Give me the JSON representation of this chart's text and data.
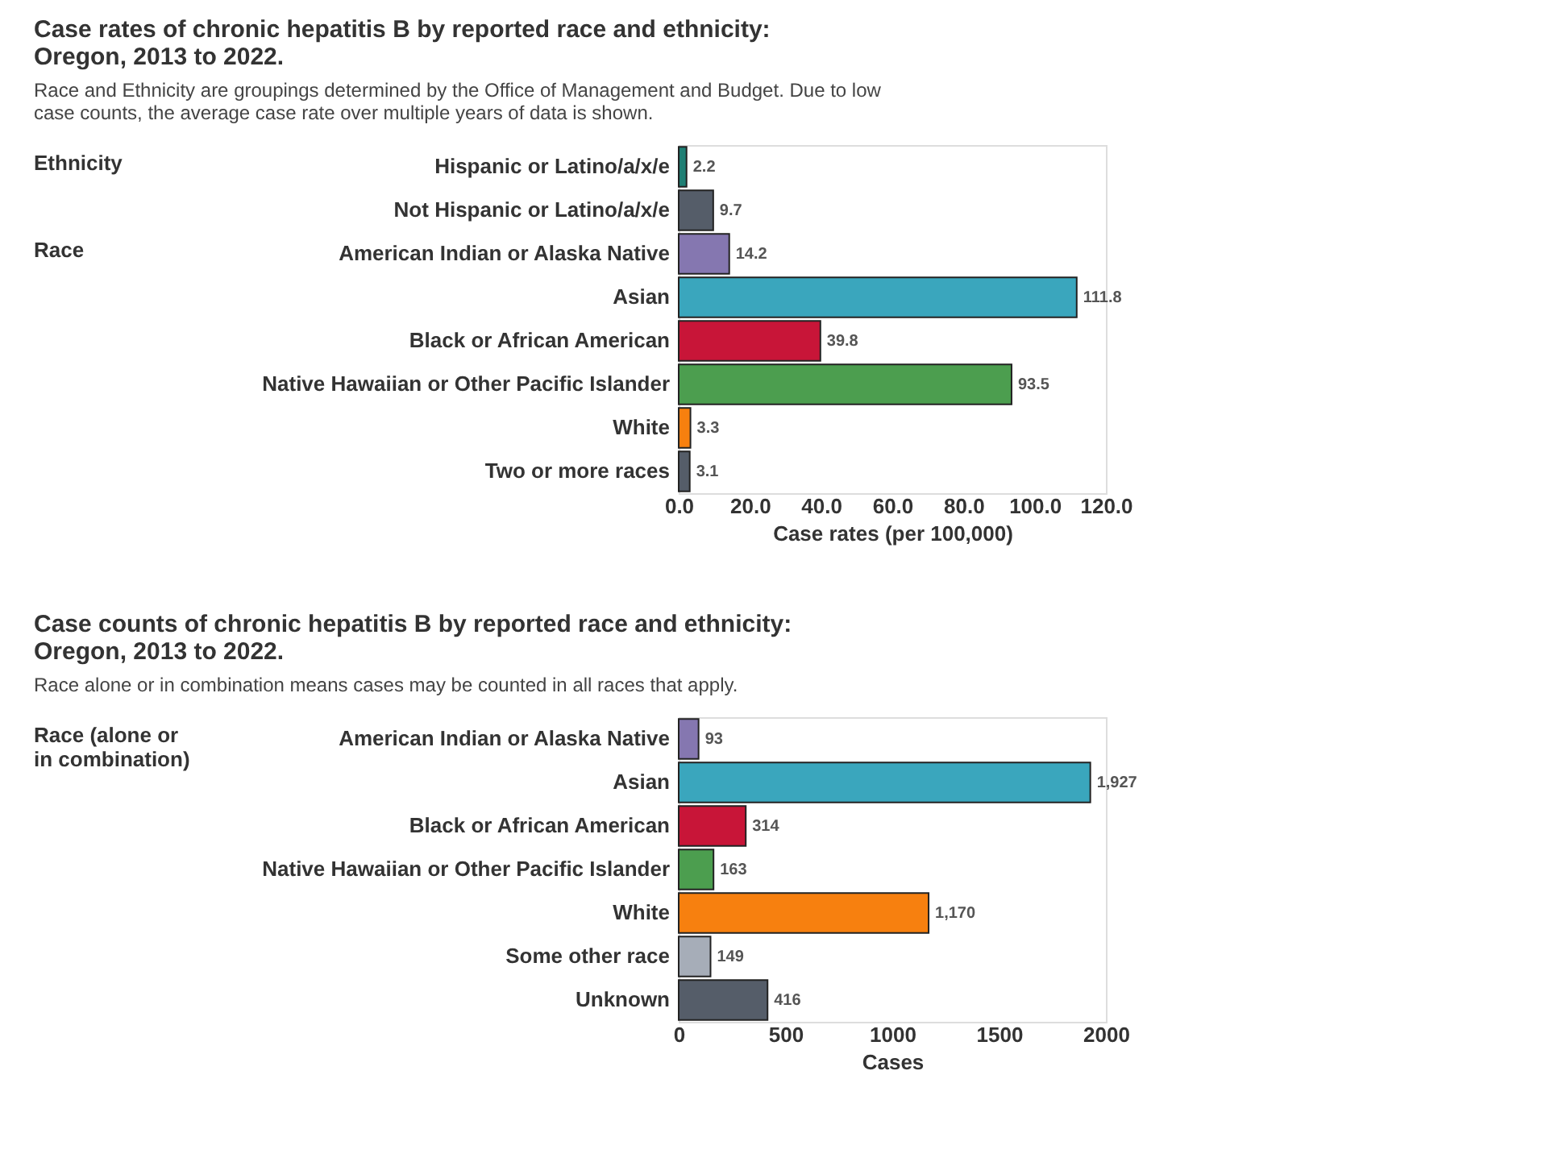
{
  "chart_data": [
    {
      "type": "bar",
      "orientation": "horizontal",
      "title": "Case rates of chronic hepatitis B by reported race and ethnicity: Oregon, 2013 to 2022.",
      "subtitle": "Race and Ethnicity are groupings determined by the Office of Management and Budget. Due to low case counts, the average case rate over multiple years of data is shown.",
      "xlabel": "Case rates (per 100,000)",
      "categories": [
        "Hispanic or Latino/a/x/e",
        "Not Hispanic or Latino/a/x/e",
        "American Indian or Alaska Native",
        "Asian",
        "Black or African American",
        "Native Hawaiian or Other Pacific Islander",
        "White",
        "Two or more races"
      ],
      "values": [
        2.2,
        9.7,
        14.2,
        111.8,
        39.8,
        93.5,
        3.3,
        3.1
      ],
      "colors": [
        "#1f7f74",
        "#555d69",
        "#8577b0",
        "#3aa6bd",
        "#c81538",
        "#4c9e4f",
        "#f7800f",
        "#555d69"
      ],
      "data_labels": true,
      "xlim": [
        0,
        120
      ],
      "xticks": [
        {
          "value": 0,
          "label": "0.0"
        },
        {
          "value": 20,
          "label": "20.0"
        },
        {
          "value": 40,
          "label": "40.0"
        },
        {
          "value": 60,
          "label": "60.0"
        },
        {
          "value": 80,
          "label": "80.0"
        },
        {
          "value": 100,
          "label": "100.0"
        },
        {
          "value": 120,
          "label": "120.0"
        }
      ],
      "annotations": [
        "Ethnicity",
        "Race"
      ],
      "grid": false
    },
    {
      "type": "bar",
      "orientation": "horizontal",
      "title": "Case counts of chronic hepatitis B by reported race and ethnicity: Oregon, 2013 to 2022.",
      "subtitle": "Race alone or in combination means cases may be counted in all races that apply.",
      "xlabel": "Cases",
      "categories": [
        "American Indian or Alaska Native",
        "Asian",
        "Black or African American",
        "Native Hawaiian or Other Pacific Islander",
        "White",
        "Some other race",
        "Unknown"
      ],
      "values": [
        93,
        1927,
        314,
        163,
        1170,
        149,
        416
      ],
      "value_labels": [
        "93",
        "1,927",
        "314",
        "163",
        "1,170",
        "149",
        "416"
      ],
      "colors": [
        "#8577b0",
        "#3aa6bd",
        "#c81538",
        "#4c9e4f",
        "#f7800f",
        "#a6adb8",
        "#555d69"
      ],
      "xlim": [
        0,
        2000
      ],
      "xticks": [
        0,
        500,
        1000,
        1500,
        2000
      ],
      "annotations": [
        "Race (alone or in combination)"
      ],
      "grid": false
    }
  ]
}
